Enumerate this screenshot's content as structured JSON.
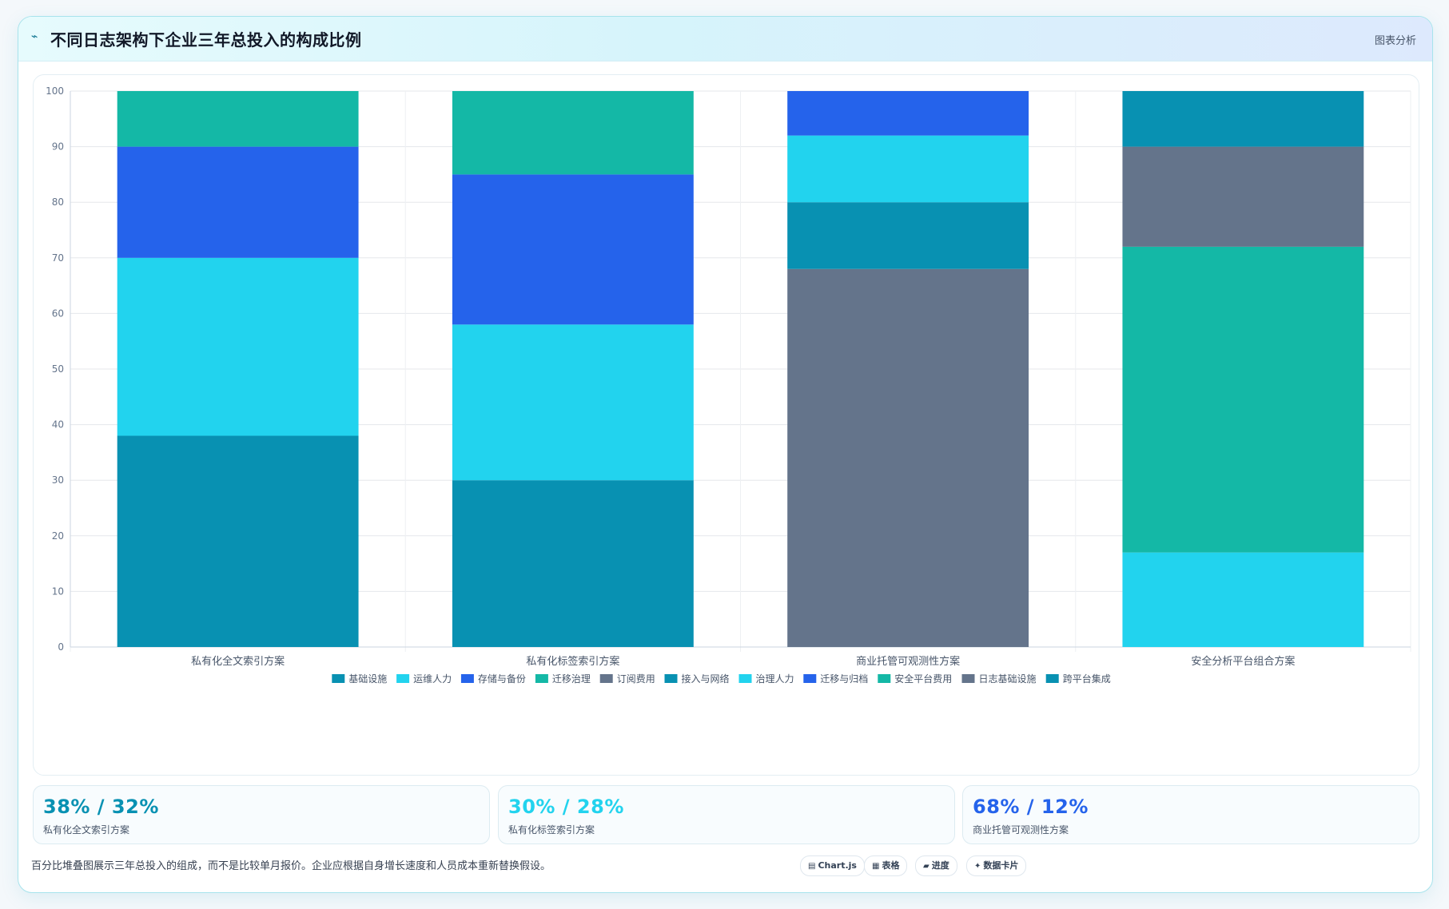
{
  "header": {
    "title": "不同日志架构下企业三年总投入的构成比例",
    "link": "图表分析",
    "icon": "chart-wave-icon"
  },
  "chart_data": {
    "type": "bar",
    "stacked": true,
    "categories": [
      "私有化全文索引方案",
      "私有化标签索引方案",
      "商业托管可观测性方案",
      "安全分析平台组合方案"
    ],
    "ylim": [
      0,
      100
    ],
    "yticks": [
      0,
      10,
      20,
      30,
      40,
      50,
      60,
      70,
      80,
      90,
      100
    ],
    "grid": true,
    "legend_position": "bottom",
    "series": [
      {
        "name": "基础设施",
        "color": "#0891b2",
        "values": [
          38,
          0,
          0,
          0
        ]
      },
      {
        "name": "运维人力",
        "color": "#22d3ee",
        "values": [
          32,
          0,
          0,
          0
        ]
      },
      {
        "name": "存储与备份",
        "color": "#2563eb",
        "values": [
          20,
          0,
          0,
          0
        ]
      },
      {
        "name": "迁移治理",
        "color": "#14b8a6",
        "values": [
          10,
          0,
          0,
          0
        ]
      },
      {
        "name": "订阅费用",
        "color": "#64748b",
        "values": [
          0,
          0,
          68,
          0
        ]
      },
      {
        "name": "接入与网络",
        "color": "#0891b2",
        "values": [
          0,
          0,
          12,
          0
        ]
      },
      {
        "name": "治理人力",
        "color": "#22d3ee",
        "values": [
          0,
          0,
          12,
          0
        ]
      },
      {
        "name": "迁移与归档",
        "color": "#2563eb",
        "values": [
          0,
          0,
          8,
          0
        ]
      },
      {
        "name": "安全平台费用",
        "color": "#14b8a6",
        "values": [
          0,
          0,
          0,
          55
        ]
      },
      {
        "name": "日志基础设施",
        "color": "#64748b",
        "values": [
          0,
          0,
          0,
          18
        ]
      },
      {
        "name": "跨平台集成",
        "color": "#0891b2",
        "values": [
          0,
          0,
          0,
          10
        ]
      },
      {
        "name": "",
        "color": "#0891b2",
        "values": [
          0,
          30,
          0,
          0
        ]
      },
      {
        "name": "",
        "color": "#22d3ee",
        "values": [
          0,
          28,
          0,
          17
        ]
      },
      {
        "name": "",
        "color": "#2563eb",
        "values": [
          0,
          27,
          0,
          0
        ]
      },
      {
        "name": "",
        "color": "#14b8a6",
        "values": [
          0,
          15,
          0,
          0
        ]
      }
    ],
    "stack_order": [
      [
        0,
        1,
        2,
        3
      ],
      [
        11,
        12,
        13,
        14
      ],
      [
        4,
        5,
        6,
        7
      ],
      [
        12,
        8,
        9,
        10
      ]
    ]
  },
  "stats": [
    {
      "value": "38% / 32%",
      "label": "私有化全文索引方案",
      "color": "#0891b2"
    },
    {
      "value": "30% / 28%",
      "label": "私有化标签索引方案",
      "color": "#22d3ee"
    },
    {
      "value": "68% / 12%",
      "label": "商业托管可观测性方案",
      "color": "#2563eb"
    }
  ],
  "footer": {
    "note": "百分比堆叠图展示三年总投入的组成，而不是比较单月报价。企业应根据自身增长速度和人员成本重新替换假设。",
    "chips": [
      {
        "icon": "▤",
        "label": "Chart.js",
        "icon_name": "chart-icon"
      },
      {
        "icon": "▦",
        "label": "表格",
        "icon_name": "table-icon"
      },
      {
        "icon": "▰",
        "label": "进度",
        "icon_name": "progress-icon"
      },
      {
        "icon": "✦",
        "label": "数据卡片",
        "icon_name": "card-icon"
      }
    ]
  }
}
